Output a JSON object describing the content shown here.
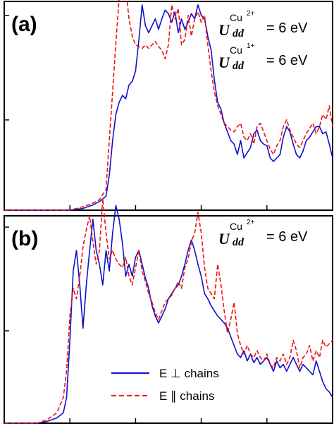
{
  "chart_data": [
    {
      "type": "line",
      "panel_label": "(a)",
      "xlim": [
        0,
        100
      ],
      "ylim": [
        0,
        1.2
      ],
      "grid": false,
      "annotations": [
        {
          "main": "U",
          "sub": "dd",
          "sup": "Cu",
          "sup_charge": "2+",
          "value": "= 6 eV"
        },
        {
          "main": "U",
          "sub": "dd",
          "sup": "Cu",
          "sup_charge": "1+",
          "value": "= 6 eV"
        }
      ],
      "series": [
        {
          "name": "E ⊥ chains",
          "color": "#1010cc",
          "dash": "solid",
          "x": [
            0,
            20,
            24,
            27,
            29,
            31,
            32,
            33,
            34,
            35,
            36,
            37,
            38,
            39,
            40,
            41,
            42,
            43,
            44,
            45,
            46,
            47,
            48,
            49,
            50,
            51,
            52,
            53,
            54,
            55,
            56,
            57,
            58,
            59,
            60,
            61,
            62,
            63,
            64,
            65,
            66,
            67,
            68,
            69,
            70,
            71,
            72,
            73,
            74,
            75,
            76,
            77,
            78,
            79,
            80,
            81,
            82,
            83,
            84,
            85,
            86,
            87,
            88,
            89,
            90,
            91,
            92,
            93,
            94,
            95,
            96,
            97,
            98,
            99,
            100
          ],
          "y": [
            0,
            0,
            0.01,
            0.03,
            0.05,
            0.08,
            0.2,
            0.4,
            0.55,
            0.62,
            0.66,
            0.64,
            0.72,
            0.74,
            0.8,
            0.98,
            1.18,
            1.06,
            1.02,
            1.06,
            1.1,
            1.04,
            1.1,
            1.15,
            1.13,
            1.08,
            1.14,
            1.02,
            1.1,
            1.04,
            1.08,
            1.13,
            1.1,
            1.18,
            1.12,
            1.1,
            1.0,
            0.92,
            0.75,
            0.62,
            0.58,
            0.5,
            0.45,
            0.4,
            0.38,
            0.32,
            0.4,
            0.3,
            0.33,
            0.36,
            0.44,
            0.46,
            0.4,
            0.38,
            0.37,
            0.3,
            0.28,
            0.3,
            0.32,
            0.42,
            0.48,
            0.45,
            0.38,
            0.32,
            0.3,
            0.34,
            0.4,
            0.42,
            0.45,
            0.48,
            0.48,
            0.44,
            0.45,
            0.38,
            0.3
          ]
        },
        {
          "name": "E ∥ chains",
          "color": "#ee1111",
          "dash": "dashed",
          "x": [
            0,
            20,
            24,
            27,
            29,
            31,
            32,
            33,
            34,
            35,
            36,
            37,
            38,
            39,
            40,
            41,
            42,
            43,
            44,
            45,
            46,
            47,
            48,
            49,
            50,
            51,
            52,
            53,
            54,
            55,
            56,
            57,
            58,
            59,
            60,
            61,
            62,
            63,
            64,
            65,
            66,
            67,
            68,
            69,
            70,
            71,
            72,
            73,
            74,
            75,
            76,
            77,
            78,
            79,
            80,
            81,
            82,
            83,
            84,
            85,
            86,
            87,
            88,
            89,
            90,
            91,
            92,
            93,
            94,
            95,
            96,
            97,
            98,
            99,
            100
          ],
          "y": [
            0,
            0,
            0.02,
            0.04,
            0.06,
            0.12,
            0.4,
            0.68,
            0.96,
            1.22,
            1.38,
            1.28,
            1.1,
            1.0,
            0.95,
            0.94,
            0.93,
            0.95,
            0.93,
            0.95,
            0.97,
            0.94,
            0.92,
            0.87,
            0.95,
            1.18,
            1.1,
            1.16,
            0.95,
            0.98,
            1.12,
            1.0,
            1.1,
            1.14,
            1.08,
            1.12,
            0.95,
            0.8,
            0.68,
            0.6,
            0.55,
            0.5,
            0.48,
            0.46,
            0.45,
            0.48,
            0.5,
            0.42,
            0.4,
            0.44,
            0.38,
            0.48,
            0.5,
            0.45,
            0.4,
            0.35,
            0.32,
            0.37,
            0.4,
            0.48,
            0.52,
            0.46,
            0.42,
            0.38,
            0.36,
            0.4,
            0.44,
            0.47,
            0.5,
            0.44,
            0.48,
            0.55,
            0.52,
            0.6,
            0.48
          ]
        }
      ]
    },
    {
      "type": "line",
      "panel_label": "(b)",
      "xlim": [
        0,
        100
      ],
      "ylim": [
        0,
        1.2
      ],
      "grid": false,
      "legend_position": "bottom-center",
      "annotations": [
        {
          "main": "U",
          "sub": "dd",
          "sup": "Cu",
          "sup_charge": "2+",
          "value": "= 6 eV"
        }
      ],
      "series": [
        {
          "name": "E ⊥ chains",
          "color": "#1010cc",
          "dash": "solid",
          "x": [
            0,
            10,
            13,
            16,
            18,
            19,
            20,
            21,
            22,
            23,
            24,
            25,
            26,
            27,
            28,
            29,
            30,
            31,
            32,
            33,
            34,
            35,
            36,
            37,
            38,
            39,
            40,
            41,
            42,
            43,
            44,
            45,
            46,
            47,
            48,
            49,
            50,
            51,
            52,
            53,
            54,
            55,
            56,
            57,
            58,
            59,
            60,
            61,
            62,
            63,
            64,
            65,
            66,
            67,
            68,
            69,
            70,
            71,
            72,
            73,
            74,
            75,
            76,
            77,
            78,
            79,
            80,
            81,
            82,
            83,
            84,
            85,
            86,
            87,
            88,
            89,
            90,
            91,
            92,
            93,
            94,
            95,
            96,
            97,
            98,
            99,
            100
          ],
          "y": [
            0,
            0,
            0.01,
            0.03,
            0.06,
            0.15,
            0.48,
            0.88,
            1.0,
            0.8,
            0.55,
            0.8,
            1.0,
            1.18,
            1.0,
            0.92,
            0.8,
            1.0,
            0.88,
            1.1,
            1.26,
            1.18,
            1.04,
            0.85,
            0.92,
            0.85,
            0.96,
            1.0,
            0.92,
            0.84,
            0.78,
            0.68,
            0.62,
            0.58,
            0.62,
            0.66,
            0.72,
            0.75,
            0.78,
            0.8,
            0.85,
            0.92,
            1.0,
            1.06,
            1.0,
            0.92,
            0.85,
            0.75,
            0.72,
            0.68,
            0.65,
            0.62,
            0.6,
            0.58,
            0.55,
            0.5,
            0.45,
            0.4,
            0.38,
            0.42,
            0.36,
            0.4,
            0.35,
            0.38,
            0.34,
            0.36,
            0.38,
            0.34,
            0.3,
            0.36,
            0.32,
            0.34,
            0.3,
            0.34,
            0.38,
            0.34,
            0.3,
            0.34,
            0.32,
            0.3,
            0.28,
            0.36,
            0.3,
            0.24,
            0.2,
            0.18,
            0.15
          ]
        },
        {
          "name": "E ∥ chains",
          "color": "#ee1111",
          "dash": "dashed",
          "x": [
            0,
            10,
            13,
            16,
            18,
            19,
            20,
            21,
            22,
            23,
            24,
            25,
            26,
            27,
            28,
            29,
            30,
            31,
            32,
            33,
            34,
            35,
            36,
            37,
            38,
            39,
            40,
            41,
            42,
            43,
            44,
            45,
            46,
            47,
            48,
            49,
            50,
            51,
            52,
            53,
            54,
            55,
            56,
            57,
            58,
            59,
            60,
            61,
            62,
            63,
            64,
            65,
            66,
            67,
            68,
            69,
            70,
            71,
            72,
            73,
            74,
            75,
            76,
            77,
            78,
            79,
            80,
            81,
            82,
            83,
            84,
            85,
            86,
            87,
            88,
            89,
            90,
            91,
            92,
            93,
            94,
            95,
            96,
            97,
            98,
            99,
            100
          ],
          "y": [
            0,
            0,
            0.02,
            0.06,
            0.15,
            0.3,
            0.62,
            0.78,
            0.72,
            0.85,
            1.02,
            1.12,
            1.2,
            1.05,
            0.92,
            1.0,
            1.3,
            1.1,
            0.95,
            1.0,
            0.95,
            0.92,
            0.9,
            0.96,
            0.85,
            0.8,
            0.9,
            1.0,
            0.88,
            0.82,
            0.75,
            0.7,
            0.64,
            0.6,
            0.65,
            0.7,
            0.72,
            0.74,
            0.78,
            0.82,
            0.78,
            0.9,
            0.95,
            1.05,
            1.1,
            1.22,
            1.1,
            0.9,
            0.78,
            0.75,
            0.72,
            0.92,
            0.8,
            0.65,
            0.52,
            0.6,
            0.7,
            0.52,
            0.45,
            0.4,
            0.45,
            0.4,
            0.38,
            0.42,
            0.38,
            0.36,
            0.4,
            0.34,
            0.32,
            0.38,
            0.36,
            0.4,
            0.34,
            0.38,
            0.48,
            0.42,
            0.32,
            0.38,
            0.4,
            0.45,
            0.36,
            0.42,
            0.38,
            0.48,
            0.44,
            0.46,
            0.48
          ]
        }
      ]
    }
  ]
}
